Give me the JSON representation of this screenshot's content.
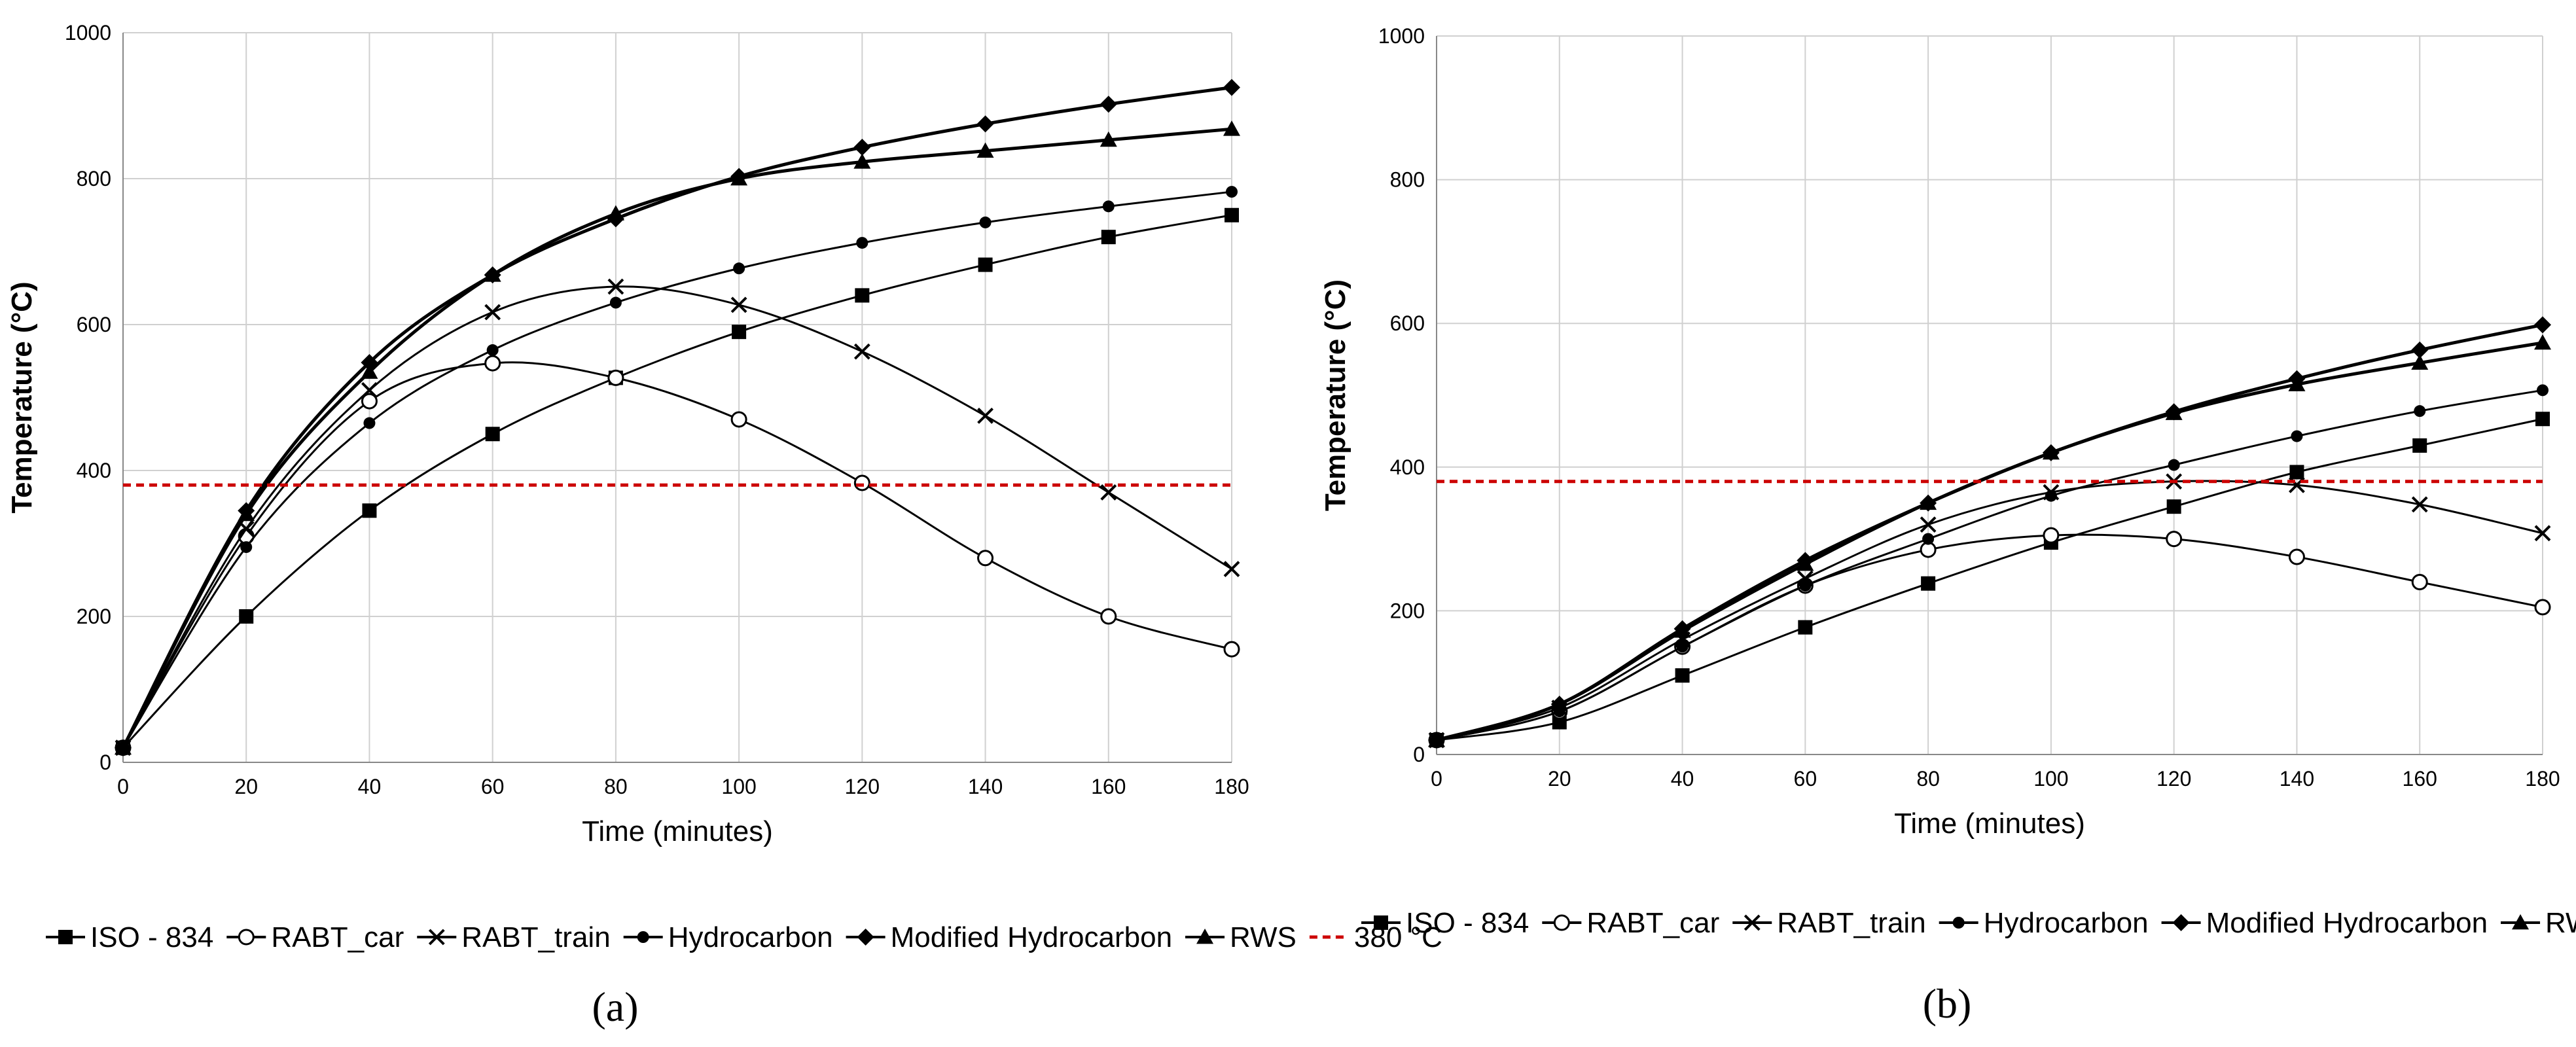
{
  "chart_data": [
    {
      "type": "line",
      "panel_label": "(a)",
      "xlabel": "Time (minutes)",
      "ylabel": "Temperature (°C)",
      "xlim": [
        0,
        180
      ],
      "ylim": [
        0,
        1000
      ],
      "x_ticks": [
        "0",
        "20",
        "40",
        "60",
        "80",
        "100",
        "120",
        "140",
        "160",
        "180"
      ],
      "y_ticks": [
        "0",
        "200",
        "400",
        "600",
        "800",
        "1000"
      ],
      "grid": true,
      "legend_position": "bottom",
      "x": [
        0,
        20,
        40,
        60,
        80,
        100,
        120,
        140,
        160,
        180
      ],
      "series": [
        {
          "name": "ISO - 834",
          "marker": "square",
          "values": [
            20,
            200,
            345,
            450,
            527,
            590,
            640,
            682,
            720,
            750
          ]
        },
        {
          "name": "RABT_car",
          "marker": "circle-open",
          "values": [
            20,
            310,
            495,
            547,
            527,
            470,
            383,
            280,
            200,
            155
          ]
        },
        {
          "name": "RABT_train",
          "marker": "x",
          "values": [
            20,
            320,
            510,
            617,
            652,
            627,
            563,
            475,
            370,
            265
          ]
        },
        {
          "name": "Hydrocarbon",
          "marker": "circle",
          "values": [
            20,
            295,
            465,
            565,
            630,
            677,
            712,
            740,
            762,
            782
          ]
        },
        {
          "name": "Modified Hydrocarbon",
          "marker": "diamond",
          "values": [
            20,
            345,
            548,
            668,
            745,
            803,
            843,
            875,
            902,
            925
          ]
        },
        {
          "name": "RWS",
          "marker": "triangle",
          "values": [
            20,
            340,
            535,
            668,
            752,
            800,
            823,
            838,
            853,
            868
          ]
        },
        {
          "name": "380 °C",
          "marker": "dashed-line",
          "color": "#cc0000",
          "values": [
            380,
            380,
            380,
            380,
            380,
            380,
            380,
            380,
            380,
            380
          ]
        }
      ]
    },
    {
      "type": "line",
      "panel_label": "(b)",
      "xlabel": "Time (minutes)",
      "ylabel": "Temperature (°C)",
      "xlim": [
        0,
        180
      ],
      "ylim": [
        0,
        1000
      ],
      "x_ticks": [
        "0",
        "20",
        "40",
        "60",
        "80",
        "100",
        "120",
        "140",
        "160",
        "180"
      ],
      "y_ticks": [
        "0",
        "200",
        "400",
        "600",
        "800",
        "1000"
      ],
      "grid": true,
      "legend_position": "bottom",
      "x": [
        0,
        20,
        40,
        60,
        80,
        100,
        120,
        140,
        160,
        180
      ],
      "series": [
        {
          "name": "ISO - 834",
          "marker": "square",
          "values": [
            20,
            45,
            110,
            177,
            238,
            295,
            345,
            393,
            430,
            467
          ]
        },
        {
          "name": "RABT_car",
          "marker": "circle-open",
          "values": [
            20,
            60,
            150,
            235,
            285,
            305,
            300,
            275,
            240,
            205
          ]
        },
        {
          "name": "RABT_train",
          "marker": "x",
          "values": [
            20,
            65,
            160,
            245,
            320,
            365,
            380,
            375,
            348,
            308
          ]
        },
        {
          "name": "Hydrocarbon",
          "marker": "circle",
          "values": [
            20,
            60,
            150,
            235,
            300,
            360,
            403,
            443,
            478,
            507
          ]
        },
        {
          "name": "Modified Hydrocarbon",
          "marker": "diamond",
          "values": [
            20,
            70,
            175,
            270,
            350,
            420,
            477,
            523,
            563,
            598
          ]
        },
        {
          "name": "RWS",
          "marker": "triangle",
          "values": [
            20,
            70,
            172,
            265,
            350,
            420,
            475,
            515,
            545,
            573
          ]
        },
        {
          "name": "380 °C",
          "marker": "dashed-line",
          "color": "#cc0000",
          "values": [
            380,
            380,
            380,
            380,
            380,
            380,
            380,
            380,
            380,
            380
          ]
        }
      ]
    }
  ]
}
